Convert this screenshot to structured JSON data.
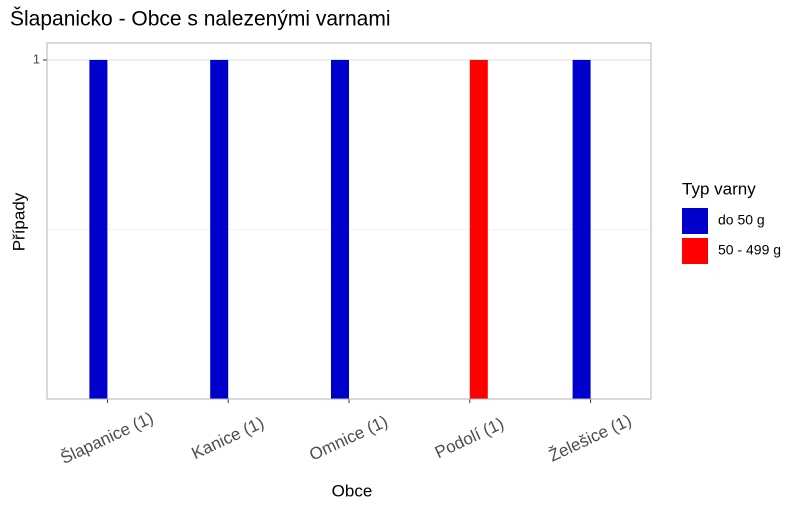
{
  "chart_data": {
    "type": "bar",
    "title": "Šlapanicko - Obce s nalezenými varnami",
    "x_label": "Obce",
    "y_label": "Případy",
    "categories": [
      "Šlapanice (1)",
      "Kanice (1)",
      "Omnice (1)",
      "Podolí (1)",
      "Želešice (1)"
    ],
    "series": [
      {
        "name": "do 50 g",
        "color": "#0000cd",
        "values": [
          1,
          1,
          1,
          null,
          1
        ]
      },
      {
        "name": "50 - 499 g",
        "color": "#ff0000",
        "values": [
          null,
          null,
          null,
          1,
          null
        ]
      }
    ],
    "ylim": [
      0,
      1.05
    ],
    "yticks": [
      1
    ],
    "minor_grid": [
      0.5
    ],
    "grid": true,
    "legend_title": "Typ varny",
    "legend_position": "right"
  }
}
